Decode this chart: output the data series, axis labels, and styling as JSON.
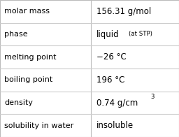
{
  "rows": [
    {
      "label": "molar mass",
      "value": "156.31 g/mol",
      "type": "plain"
    },
    {
      "label": "phase",
      "value": "liquid",
      "value_suffix": " (at STP)",
      "type": "suffix"
    },
    {
      "label": "melting point",
      "value": "−26 °C",
      "type": "plain"
    },
    {
      "label": "boiling point",
      "value": "196 °C",
      "type": "plain"
    },
    {
      "label": "density",
      "value": "0.74 g/cm",
      "superscript": "3",
      "type": "super"
    },
    {
      "label": "solubility in water",
      "value": "insoluble",
      "type": "plain"
    }
  ],
  "col_split": 0.508,
  "background_color": "#ffffff",
  "border_color": "#bbbbbb",
  "text_color": "#000000",
  "label_fontsize": 8.0,
  "value_fontsize": 8.5,
  "suffix_fontsize": 6.2,
  "row_line_color": "#cccccc",
  "font_family": "DejaVu Sans"
}
